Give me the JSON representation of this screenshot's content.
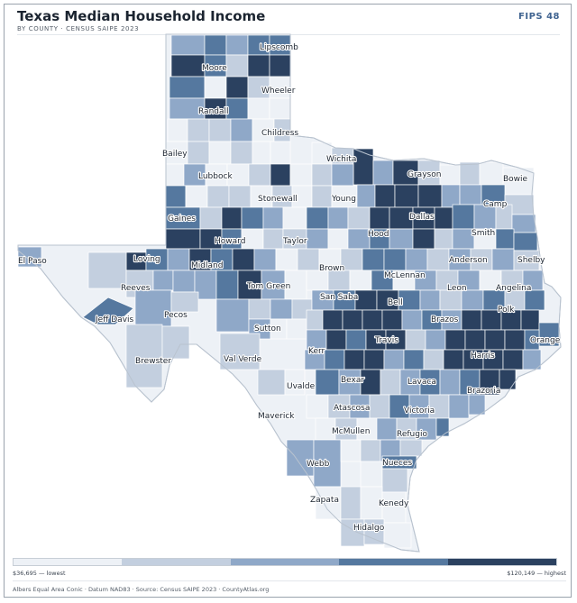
{
  "header": {
    "title": "Texas Median Household Income",
    "subtitle": "BY COUNTY · CENSUS SAIPE 2023",
    "fips": "FIPS 48"
  },
  "legend": {
    "low_label": "$36,695 — lowest",
    "high_label": "$120,149 — highest",
    "colors": [
      "#edf1f6",
      "#c3cfdf",
      "#8fa8c8",
      "#55789f",
      "#2b4160"
    ]
  },
  "footer": {
    "text": "Albers Equal Area Conic · Datum NAD83 · Source: Census SAIPE 2023 · CountyAtlas.org"
  },
  "map": {
    "state_fill": "#edf1f6",
    "county_labels": [
      "Lipscomb",
      "Moore",
      "Wheeler",
      "Randall",
      "Childress",
      "Bailey",
      "Wichita",
      "Grayson",
      "Bowie",
      "Lubbock",
      "Stonewall",
      "Young",
      "Camp",
      "Gaines",
      "Dallas",
      "Smith",
      "Howard",
      "Taylor",
      "Hood",
      "El Paso",
      "Loving",
      "Anderson",
      "Shelby",
      "Midland",
      "Brown",
      "McLennan",
      "Reeves",
      "Tom Green",
      "Leon",
      "Angelina",
      "San Saba",
      "Bell",
      "Jeff Davis",
      "Pecos",
      "Brazos",
      "Polk",
      "Sutton",
      "Travis",
      "Orange",
      "Kerr",
      "Brewster",
      "Val Verde",
      "Harris",
      "Bexar",
      "Lavaca",
      "Uvalde",
      "Brazoria",
      "Atascosa",
      "Maverick",
      "Victoria",
      "McMullen",
      "Refugio",
      "Webb",
      "Nueces",
      "Zapata",
      "Kenedy",
      "Hidalgo"
    ]
  }
}
